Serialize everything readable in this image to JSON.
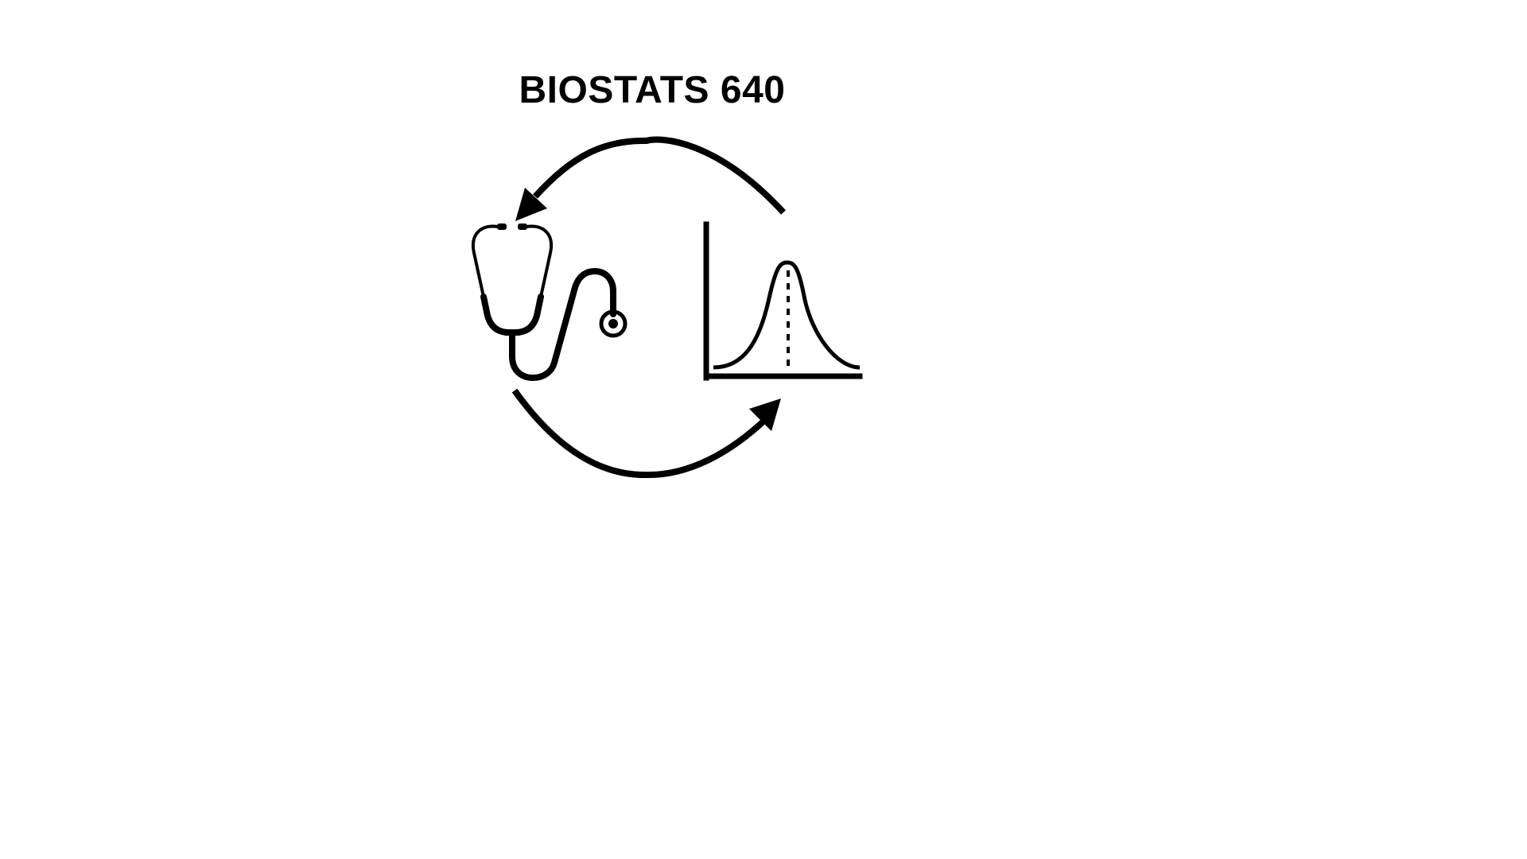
{
  "diagram": {
    "title": "BIOSTATS 640",
    "elements": [
      {
        "name": "stethoscope-icon",
        "role": "clinical medicine"
      },
      {
        "name": "distribution-chart-icon",
        "role": "statistics"
      }
    ],
    "cycle_direction": "clockwise",
    "colors": {
      "stroke": "#000000",
      "background": "#ffffff"
    }
  }
}
